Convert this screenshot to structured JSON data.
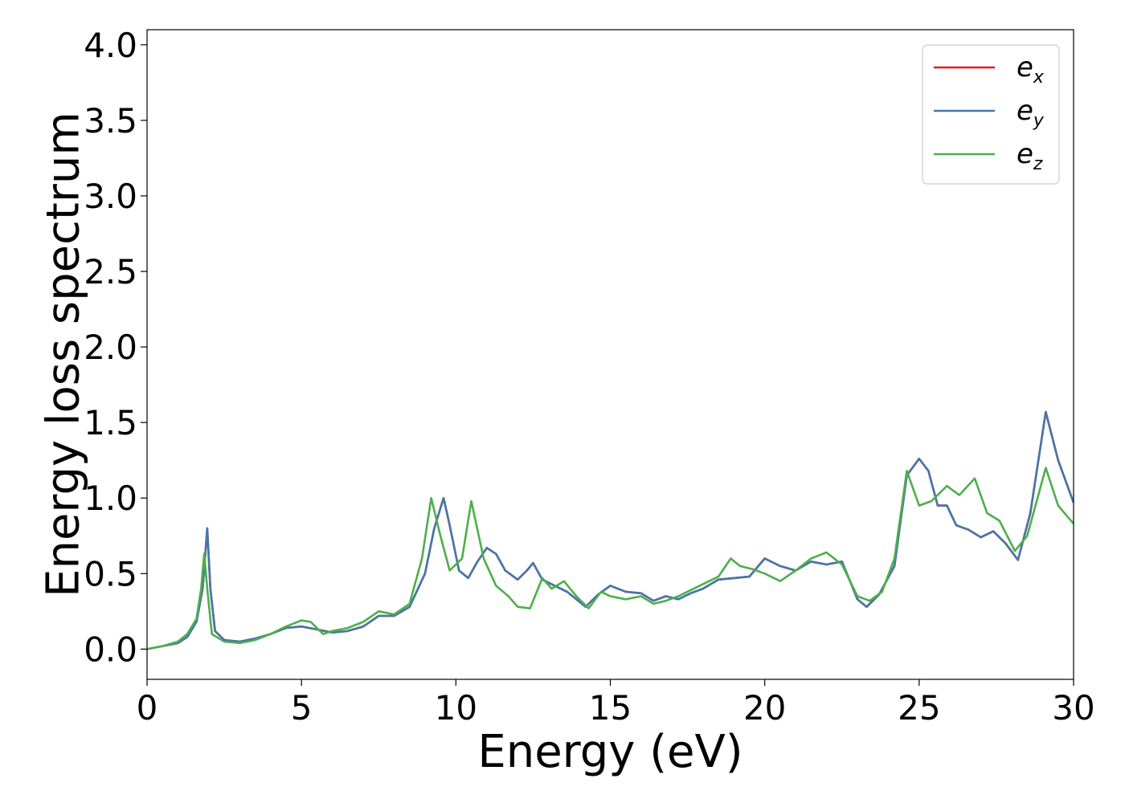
{
  "chart_data": {
    "type": "line",
    "title": "",
    "xlabel": "Energy (eV)",
    "ylabel": "Energy loss spectrum",
    "xlim": [
      0,
      30
    ],
    "ylim": [
      -0.2,
      4.1
    ],
    "x_ticks": [
      "0",
      "5",
      "10",
      "15",
      "20",
      "25",
      "30"
    ],
    "y_ticks": [
      "0.0",
      "0.5",
      "1.0",
      "1.5",
      "2.0",
      "2.5",
      "3.0",
      "3.5",
      "4.0"
    ],
    "grid": false,
    "legend_position": "top-right",
    "series": [
      {
        "name": "e_x",
        "legend_main": "e",
        "legend_sub": "x",
        "color": "#e41a1c",
        "points": [
          [
            0,
            0
          ],
          [
            0.5,
            0.02
          ],
          [
            1.0,
            0.04
          ],
          [
            1.3,
            0.08
          ],
          [
            1.6,
            0.18
          ],
          [
            1.8,
            0.4
          ],
          [
            1.95,
            0.8
          ],
          [
            2.05,
            0.4
          ],
          [
            2.2,
            0.12
          ],
          [
            2.5,
            0.06
          ],
          [
            3.0,
            0.05
          ],
          [
            3.5,
            0.07
          ],
          [
            4.0,
            0.1
          ],
          [
            4.5,
            0.14
          ],
          [
            5.0,
            0.15
          ],
          [
            5.5,
            0.13
          ],
          [
            6.0,
            0.11
          ],
          [
            6.5,
            0.12
          ],
          [
            7.0,
            0.15
          ],
          [
            7.5,
            0.22
          ],
          [
            8.0,
            0.22
          ],
          [
            8.5,
            0.28
          ],
          [
            9.0,
            0.5
          ],
          [
            9.3,
            0.8
          ],
          [
            9.6,
            1.0
          ],
          [
            9.8,
            0.82
          ],
          [
            10.1,
            0.52
          ],
          [
            10.4,
            0.47
          ],
          [
            10.7,
            0.58
          ],
          [
            11.0,
            0.67
          ],
          [
            11.3,
            0.63
          ],
          [
            11.6,
            0.52
          ],
          [
            12.0,
            0.46
          ],
          [
            12.3,
            0.52
          ],
          [
            12.5,
            0.57
          ],
          [
            12.8,
            0.46
          ],
          [
            13.2,
            0.42
          ],
          [
            13.6,
            0.38
          ],
          [
            14.2,
            0.28
          ],
          [
            14.6,
            0.36
          ],
          [
            15.0,
            0.42
          ],
          [
            15.5,
            0.38
          ],
          [
            16.0,
            0.37
          ],
          [
            16.4,
            0.32
          ],
          [
            16.8,
            0.35
          ],
          [
            17.2,
            0.33
          ],
          [
            17.6,
            0.37
          ],
          [
            18.0,
            0.4
          ],
          [
            18.5,
            0.46
          ],
          [
            19.0,
            0.47
          ],
          [
            19.5,
            0.48
          ],
          [
            20.0,
            0.6
          ],
          [
            20.5,
            0.55
          ],
          [
            21.0,
            0.52
          ],
          [
            21.5,
            0.58
          ],
          [
            22.0,
            0.56
          ],
          [
            22.5,
            0.58
          ],
          [
            23.0,
            0.33
          ],
          [
            23.3,
            0.28
          ],
          [
            23.7,
            0.36
          ],
          [
            24.2,
            0.55
          ],
          [
            24.6,
            1.15
          ],
          [
            25.0,
            1.26
          ],
          [
            25.3,
            1.18
          ],
          [
            25.6,
            0.95
          ],
          [
            25.9,
            0.95
          ],
          [
            26.2,
            0.82
          ],
          [
            26.6,
            0.79
          ],
          [
            27.0,
            0.74
          ],
          [
            27.4,
            0.78
          ],
          [
            27.8,
            0.7
          ],
          [
            28.2,
            0.59
          ],
          [
            28.6,
            0.9
          ],
          [
            29.1,
            1.57
          ],
          [
            29.5,
            1.25
          ],
          [
            30.0,
            0.97
          ]
        ]
      },
      {
        "name": "e_y",
        "legend_main": "e",
        "legend_sub": "y",
        "color": "#4477aa",
        "points": [
          [
            0,
            0
          ],
          [
            0.5,
            0.02
          ],
          [
            1.0,
            0.04
          ],
          [
            1.3,
            0.08
          ],
          [
            1.6,
            0.18
          ],
          [
            1.8,
            0.4
          ],
          [
            1.95,
            0.8
          ],
          [
            2.05,
            0.4
          ],
          [
            2.2,
            0.12
          ],
          [
            2.5,
            0.06
          ],
          [
            3.0,
            0.05
          ],
          [
            3.5,
            0.07
          ],
          [
            4.0,
            0.1
          ],
          [
            4.5,
            0.14
          ],
          [
            5.0,
            0.15
          ],
          [
            5.5,
            0.13
          ],
          [
            6.0,
            0.11
          ],
          [
            6.5,
            0.12
          ],
          [
            7.0,
            0.15
          ],
          [
            7.5,
            0.22
          ],
          [
            8.0,
            0.22
          ],
          [
            8.5,
            0.28
          ],
          [
            9.0,
            0.5
          ],
          [
            9.3,
            0.8
          ],
          [
            9.6,
            1.0
          ],
          [
            9.8,
            0.82
          ],
          [
            10.1,
            0.52
          ],
          [
            10.4,
            0.47
          ],
          [
            10.7,
            0.58
          ],
          [
            11.0,
            0.67
          ],
          [
            11.3,
            0.63
          ],
          [
            11.6,
            0.52
          ],
          [
            12.0,
            0.46
          ],
          [
            12.3,
            0.52
          ],
          [
            12.5,
            0.57
          ],
          [
            12.8,
            0.46
          ],
          [
            13.2,
            0.42
          ],
          [
            13.6,
            0.38
          ],
          [
            14.2,
            0.28
          ],
          [
            14.6,
            0.36
          ],
          [
            15.0,
            0.42
          ],
          [
            15.5,
            0.38
          ],
          [
            16.0,
            0.37
          ],
          [
            16.4,
            0.32
          ],
          [
            16.8,
            0.35
          ],
          [
            17.2,
            0.33
          ],
          [
            17.6,
            0.37
          ],
          [
            18.0,
            0.4
          ],
          [
            18.5,
            0.46
          ],
          [
            19.0,
            0.47
          ],
          [
            19.5,
            0.48
          ],
          [
            20.0,
            0.6
          ],
          [
            20.5,
            0.55
          ],
          [
            21.0,
            0.52
          ],
          [
            21.5,
            0.58
          ],
          [
            22.0,
            0.56
          ],
          [
            22.5,
            0.58
          ],
          [
            23.0,
            0.33
          ],
          [
            23.3,
            0.28
          ],
          [
            23.7,
            0.36
          ],
          [
            24.2,
            0.55
          ],
          [
            24.6,
            1.15
          ],
          [
            25.0,
            1.26
          ],
          [
            25.3,
            1.18
          ],
          [
            25.6,
            0.95
          ],
          [
            25.9,
            0.95
          ],
          [
            26.2,
            0.82
          ],
          [
            26.6,
            0.79
          ],
          [
            27.0,
            0.74
          ],
          [
            27.4,
            0.78
          ],
          [
            27.8,
            0.7
          ],
          [
            28.2,
            0.59
          ],
          [
            28.6,
            0.9
          ],
          [
            29.1,
            1.57
          ],
          [
            29.5,
            1.25
          ],
          [
            30.0,
            0.97
          ]
        ]
      },
      {
        "name": "e_z",
        "legend_main": "e",
        "legend_sub": "z",
        "color": "#4daf4a",
        "points": [
          [
            0,
            0
          ],
          [
            0.5,
            0.02
          ],
          [
            1.0,
            0.05
          ],
          [
            1.3,
            0.1
          ],
          [
            1.6,
            0.2
          ],
          [
            1.75,
            0.4
          ],
          [
            1.85,
            0.63
          ],
          [
            1.95,
            0.4
          ],
          [
            2.1,
            0.1
          ],
          [
            2.5,
            0.05
          ],
          [
            3.0,
            0.04
          ],
          [
            3.5,
            0.06
          ],
          [
            4.0,
            0.1
          ],
          [
            4.5,
            0.15
          ],
          [
            5.0,
            0.19
          ],
          [
            5.3,
            0.18
          ],
          [
            5.7,
            0.1
          ],
          [
            6.0,
            0.12
          ],
          [
            6.5,
            0.14
          ],
          [
            7.0,
            0.18
          ],
          [
            7.5,
            0.25
          ],
          [
            8.0,
            0.23
          ],
          [
            8.5,
            0.3
          ],
          [
            8.9,
            0.6
          ],
          [
            9.2,
            1.0
          ],
          [
            9.5,
            0.75
          ],
          [
            9.8,
            0.52
          ],
          [
            10.2,
            0.6
          ],
          [
            10.5,
            0.98
          ],
          [
            10.9,
            0.6
          ],
          [
            11.3,
            0.42
          ],
          [
            11.7,
            0.35
          ],
          [
            12.0,
            0.28
          ],
          [
            12.4,
            0.27
          ],
          [
            12.8,
            0.47
          ],
          [
            13.1,
            0.4
          ],
          [
            13.5,
            0.45
          ],
          [
            13.9,
            0.35
          ],
          [
            14.3,
            0.27
          ],
          [
            14.7,
            0.38
          ],
          [
            15.0,
            0.35
          ],
          [
            15.5,
            0.33
          ],
          [
            16.0,
            0.35
          ],
          [
            16.4,
            0.3
          ],
          [
            16.8,
            0.32
          ],
          [
            17.2,
            0.35
          ],
          [
            17.7,
            0.4
          ],
          [
            18.2,
            0.45
          ],
          [
            18.5,
            0.48
          ],
          [
            18.9,
            0.6
          ],
          [
            19.2,
            0.55
          ],
          [
            19.6,
            0.53
          ],
          [
            20.0,
            0.5
          ],
          [
            20.5,
            0.45
          ],
          [
            21.0,
            0.52
          ],
          [
            21.5,
            0.6
          ],
          [
            22.0,
            0.64
          ],
          [
            22.5,
            0.56
          ],
          [
            23.0,
            0.35
          ],
          [
            23.4,
            0.32
          ],
          [
            23.8,
            0.38
          ],
          [
            24.2,
            0.6
          ],
          [
            24.6,
            1.18
          ],
          [
            25.0,
            0.95
          ],
          [
            25.4,
            0.98
          ],
          [
            25.9,
            1.08
          ],
          [
            26.3,
            1.02
          ],
          [
            26.8,
            1.13
          ],
          [
            27.2,
            0.9
          ],
          [
            27.6,
            0.85
          ],
          [
            28.1,
            0.65
          ],
          [
            28.5,
            0.75
          ],
          [
            29.1,
            1.2
          ],
          [
            29.5,
            0.95
          ],
          [
            30.0,
            0.83
          ]
        ]
      }
    ]
  }
}
